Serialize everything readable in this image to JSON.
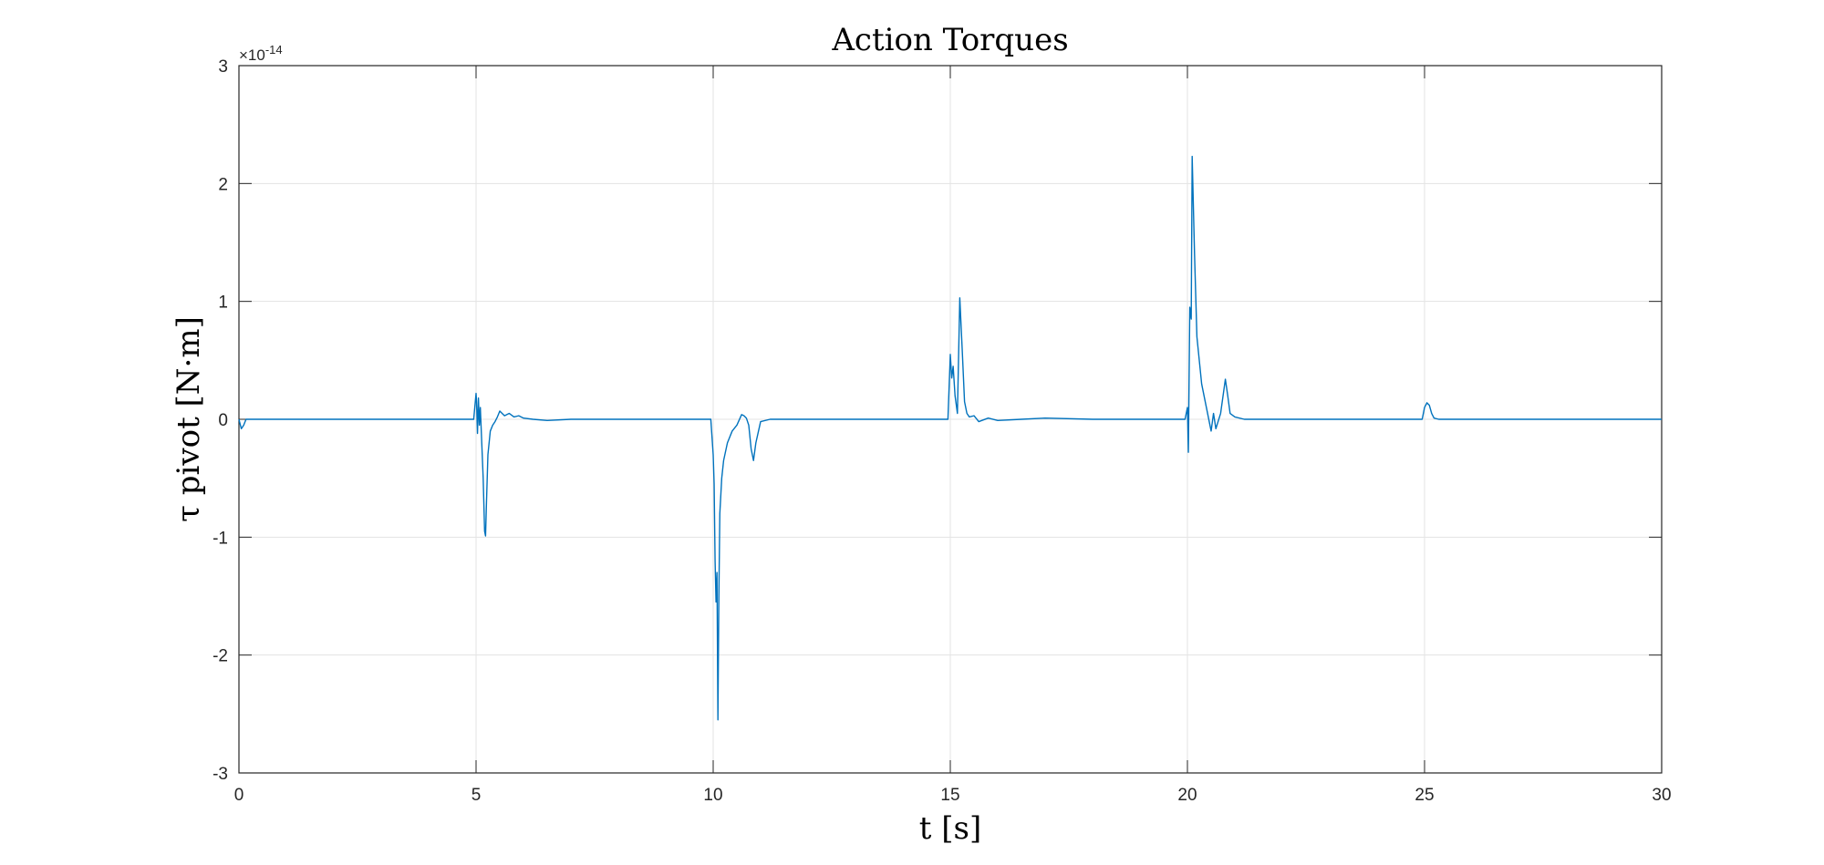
{
  "chart_data": {
    "type": "line",
    "title": "Action Torques",
    "xlabel": "t [s]",
    "ylabel": "τ pivot [N·m]",
    "exponent_label": "×10",
    "exponent_power": "-14",
    "xlim": [
      0,
      30
    ],
    "ylim": [
      -3,
      3
    ],
    "xticks": [
      0,
      5,
      10,
      15,
      20,
      25,
      30
    ],
    "yticks": [
      -3,
      -2,
      -1,
      0,
      1,
      2,
      3
    ],
    "xtick_labels": [
      "0",
      "5",
      "10",
      "15",
      "20",
      "25",
      "30"
    ],
    "ytick_labels": [
      "-3",
      "-2",
      "-1",
      "0",
      "1",
      "2",
      "3"
    ],
    "grid": true,
    "series": [
      {
        "color": "#0072BD",
        "x": [
          0,
          0.05,
          0.1,
          0.15,
          0.3,
          1,
          2,
          3,
          4,
          4.95,
          5.0,
          5.01,
          5.03,
          5.05,
          5.07,
          5.09,
          5.12,
          5.15,
          5.18,
          5.2,
          5.22,
          5.25,
          5.3,
          5.35,
          5.4,
          5.45,
          5.5,
          5.6,
          5.7,
          5.8,
          5.9,
          6.0,
          6.2,
          6.5,
          7,
          8,
          9,
          9.95,
          10.0,
          10.02,
          10.04,
          10.06,
          10.08,
          10.1,
          10.12,
          10.14,
          10.18,
          10.22,
          10.3,
          10.4,
          10.5,
          10.6,
          10.65,
          10.7,
          10.75,
          10.8,
          10.85,
          10.9,
          11.0,
          11.2,
          11.5,
          12,
          13,
          14,
          14.95,
          15.0,
          15.03,
          15.06,
          15.1,
          15.15,
          15.2,
          15.25,
          15.3,
          15.35,
          15.4,
          15.5,
          15.6,
          15.8,
          16,
          16.5,
          17,
          18,
          19,
          19.95,
          20.0,
          20.02,
          20.05,
          20.08,
          20.1,
          20.15,
          20.2,
          20.3,
          20.4,
          20.5,
          20.55,
          20.6,
          20.7,
          20.8,
          20.85,
          20.9,
          21.0,
          21.2,
          21.5,
          22,
          23,
          24,
          24.95,
          25.0,
          25.05,
          25.1,
          25.15,
          25.2,
          25.3,
          25.5,
          26,
          27,
          28,
          29,
          30
        ],
        "y": [
          0,
          -0.08,
          -0.05,
          0,
          0,
          0,
          0,
          0,
          0,
          0,
          0.22,
          0.15,
          -0.12,
          0.18,
          -0.05,
          0.1,
          -0.2,
          -0.5,
          -0.95,
          -0.99,
          -0.7,
          -0.3,
          -0.1,
          -0.05,
          -0.02,
          0.02,
          0.07,
          0.03,
          0.05,
          0.02,
          0.03,
          0.01,
          0,
          -0.01,
          0,
          0,
          0,
          0,
          -0.3,
          -0.55,
          -1.2,
          -1.55,
          -1.3,
          -2.55,
          -1.5,
          -0.8,
          -0.5,
          -0.35,
          -0.2,
          -0.1,
          -0.05,
          0.04,
          0.03,
          0.01,
          -0.05,
          -0.25,
          -0.35,
          -0.2,
          -0.02,
          0,
          0,
          0,
          0,
          0,
          0,
          0.55,
          0.35,
          0.45,
          0.2,
          0.05,
          1.03,
          0.6,
          0.15,
          0.05,
          0.02,
          0.03,
          -0.02,
          0.01,
          -0.01,
          0,
          0.01,
          0,
          0,
          0,
          0.1,
          -0.28,
          0.95,
          0.85,
          2.23,
          1.4,
          0.7,
          0.3,
          0.1,
          -0.1,
          0.05,
          -0.08,
          0.05,
          0.34,
          0.2,
          0.05,
          0.02,
          0,
          0,
          0,
          0,
          0,
          0,
          0.1,
          0.14,
          0.12,
          0.05,
          0.01,
          0,
          0,
          0,
          0,
          0,
          0,
          0
        ]
      }
    ]
  }
}
